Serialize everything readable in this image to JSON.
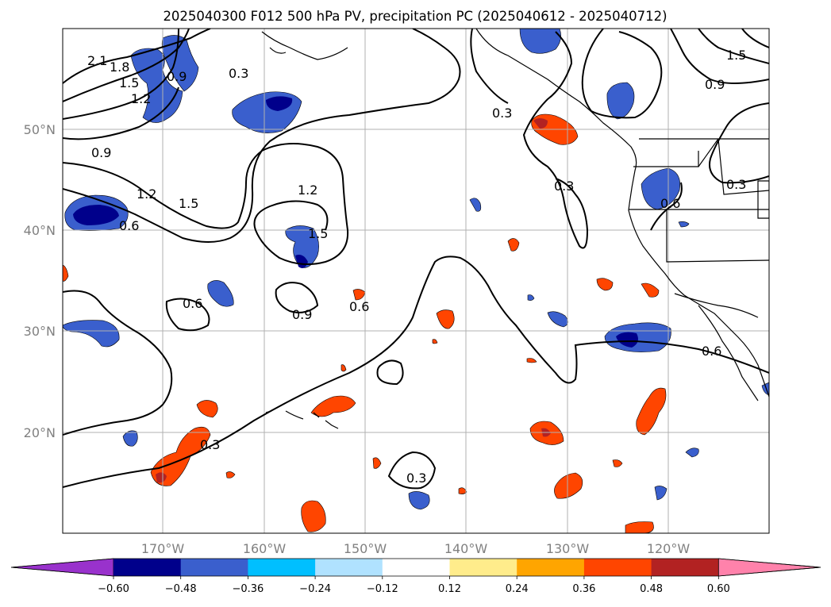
{
  "title": "2025040300 F012 500 hPa PV, precipitation PC (2025040612 - 2025040712)",
  "lat_labels": [
    "50°N",
    "40°N",
    "30°N",
    "20°N"
  ],
  "lon_labels": [
    "170°W",
    "160°W",
    "150°W",
    "140°W",
    "130°W",
    "120°W"
  ],
  "colorbar": {
    "ticks": [
      "−0.60",
      "−0.48",
      "−0.36",
      "−0.24",
      "−0.12",
      "0.12",
      "0.24",
      "0.36",
      "0.48",
      "0.60"
    ],
    "colors": [
      "#9932cc",
      "#00008b",
      "#3a5fcd",
      "#00bfff",
      "#b0e2ff",
      "#ffffff",
      "#ffec8b",
      "#ffa500",
      "#ff4500",
      "#b22222",
      "#ff82ab"
    ]
  },
  "contour_labels": [
    "2.1",
    "1.8",
    "1.5",
    "1.2",
    "0.9",
    "0.3",
    "0.9",
    "1.2",
    "1.5",
    "1.2",
    "1.5",
    "0.6",
    "0.9",
    "0.6",
    "0.3",
    "0.3",
    "0.3",
    "0.3",
    "0.6",
    "0.6",
    "1.5",
    "0.9",
    "0.3",
    "0.6"
  ]
}
